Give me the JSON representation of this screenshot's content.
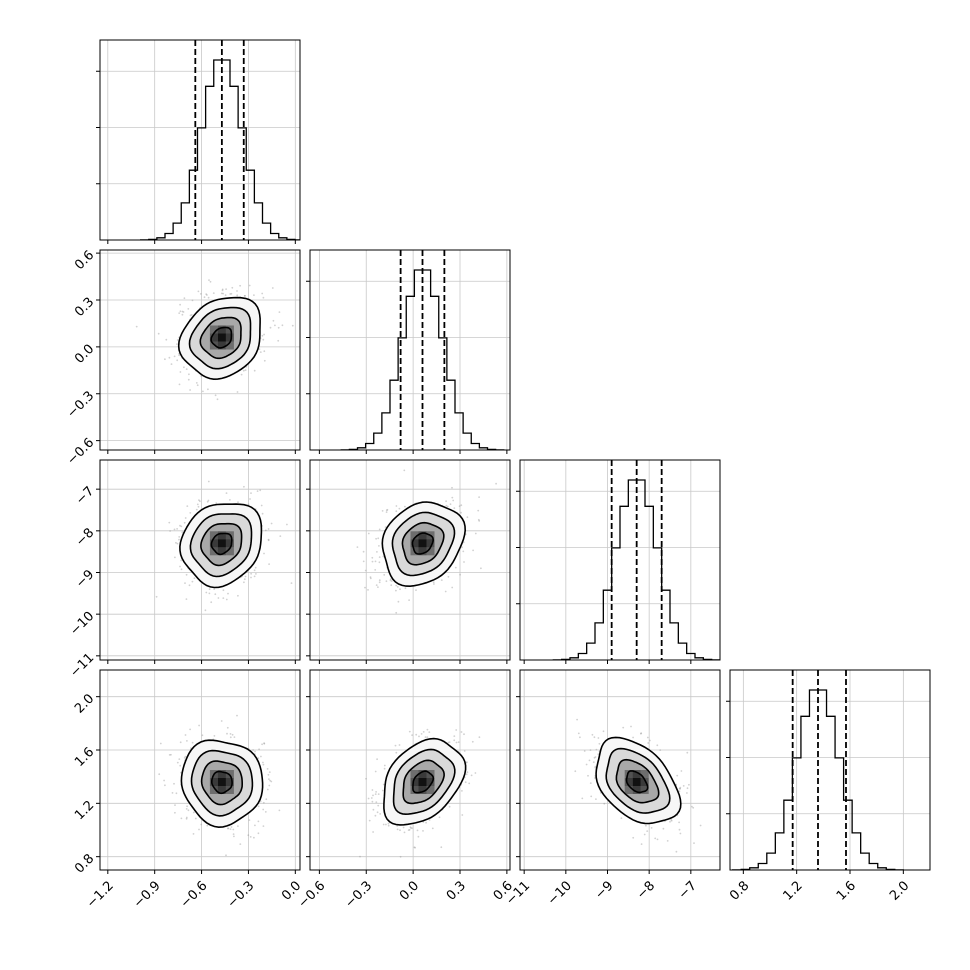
{
  "chart_data": {
    "type": "corner",
    "parameters": [
      {
        "range": [
          -1.25,
          0.03
        ],
        "ticks": [
          -1.2,
          -0.9,
          -0.6,
          -0.3,
          0.0
        ],
        "ticklabels": [
          "−1.2",
          "−0.9",
          "−0.6",
          "−0.3",
          "0.0"
        ],
        "mean": -0.47,
        "sigma": 0.13,
        "quantiles": [
          -0.64,
          -0.47,
          -0.33
        ]
      },
      {
        "range": [
          -0.66,
          0.62
        ],
        "ticks": [
          -0.6,
          -0.3,
          0.0,
          0.3,
          0.6
        ],
        "ticklabels": [
          "−0.6",
          "−0.3",
          "0.0",
          "0.3",
          "0.6"
        ],
        "mean": 0.06,
        "sigma": 0.13,
        "quantiles": [
          -0.08,
          0.06,
          0.2
        ]
      },
      {
        "range": [
          -11.1,
          -6.3
        ],
        "ticks": [
          -11,
          -10,
          -9,
          -8,
          -7
        ],
        "ticklabels": [
          "−11",
          "−10",
          "−9",
          "−8",
          "−7"
        ],
        "mean": -8.3,
        "sigma": 0.5,
        "quantiles": [
          -8.9,
          -8.3,
          -7.7
        ]
      },
      {
        "range": [
          0.7,
          2.2
        ],
        "ticks": [
          0.8,
          1.2,
          1.6,
          2.0
        ],
        "ticklabels": [
          "0.8",
          "1.2",
          "1.6",
          "2.0"
        ],
        "mean": 1.36,
        "sigma": 0.16,
        "quantiles": [
          1.17,
          1.36,
          1.57
        ]
      }
    ],
    "correlations": [
      [
        1,
        0.2,
        0.15,
        -0.05
      ],
      [
        0.2,
        1,
        0.2,
        0.35
      ],
      [
        0.15,
        0.2,
        1,
        -0.4
      ],
      [
        -0.05,
        0.35,
        -0.4,
        1
      ]
    ],
    "contour_levels_sigma": [
      0.5,
      1.0,
      1.5,
      2.0
    ],
    "grid": true,
    "title": "",
    "xlabel": "",
    "ylabel": ""
  },
  "colors": {
    "axes": "#000000",
    "grid": "#c8c8c8",
    "points": "#9a9a9a",
    "density_dark": "#111111"
  }
}
